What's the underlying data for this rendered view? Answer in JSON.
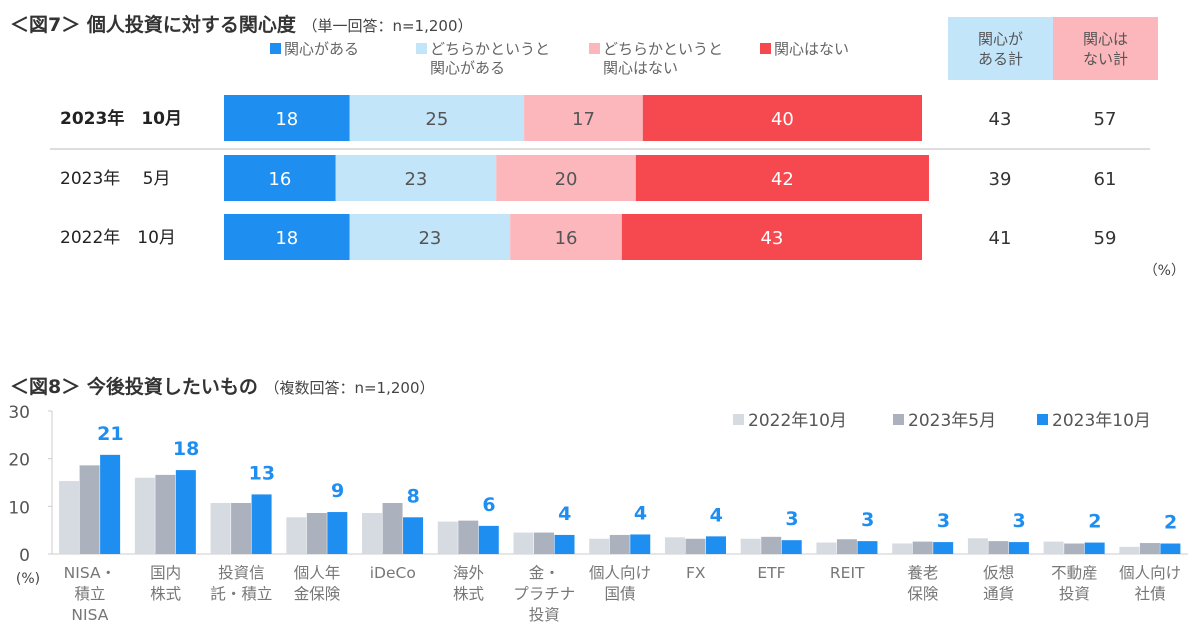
{
  "chart_data": [
    {
      "type": "bar",
      "orientation": "horizontal-stacked",
      "title": "＜図7＞ 個人投資に対する関心度",
      "subtitle": "（単一回答：n=1,200）",
      "categories": [
        "2023年　10月",
        "2023年　 5月",
        "2022年　10月"
      ],
      "series": [
        {
          "name": "関心がある",
          "color": "#1f8ef1",
          "values": [
            18,
            16,
            18
          ]
        },
        {
          "name": "どちらかというと関心がある",
          "label_lines": [
            "どちらかというと",
            "関心がある"
          ],
          "color": "#c3e5f9",
          "values": [
            25,
            23,
            23
          ]
        },
        {
          "name": "どちらかというと関心はない",
          "label_lines": [
            "どちらかというと",
            "関心はない"
          ],
          "color": "#fbb7bb",
          "values": [
            17,
            20,
            16
          ]
        },
        {
          "name": "関心はない",
          "color": "#f6484f",
          "values": [
            40,
            42,
            43
          ]
        }
      ],
      "totals": {
        "headers": [
          {
            "lines": [
              "関心が",
              "ある計"
            ],
            "color": "#c3e5f9"
          },
          {
            "lines": [
              "関心は",
              "ない計"
            ],
            "color": "#fbb7bb"
          }
        ],
        "values": [
          [
            43,
            57
          ],
          [
            39,
            61
          ],
          [
            41,
            59
          ]
        ]
      },
      "unit": "（%）",
      "legend": "top"
    },
    {
      "type": "bar",
      "title": "＜図8＞ 今後投資したいもの",
      "subtitle": "（複数回答：n=1,200）",
      "ylabel": "(%)",
      "ylim": [
        0,
        30
      ],
      "yticks": [
        0,
        10,
        20,
        30
      ],
      "categories": [
        [
          "NISA・",
          "積立",
          "NISA"
        ],
        [
          "国内",
          "株式"
        ],
        [
          "投資信",
          "託・積立"
        ],
        [
          "個人年",
          "金保険"
        ],
        [
          "iDeCo"
        ],
        [
          "海外",
          "株式"
        ],
        [
          "金・",
          "プラチナ",
          "投資"
        ],
        [
          "個人向け",
          "国債"
        ],
        [
          "FX"
        ],
        [
          "ETF"
        ],
        [
          "REIT"
        ],
        [
          "養老",
          "保険"
        ],
        [
          "仮想",
          "通貨"
        ],
        [
          "不動産",
          "投資"
        ],
        [
          "個人向け",
          "社債"
        ]
      ],
      "series": [
        {
          "name": "2022年10月",
          "color": "#d6dae1",
          "values": [
            15.3,
            16.0,
            10.7,
            7.7,
            8.6,
            6.8,
            4.5,
            3.2,
            3.5,
            3.2,
            2.4,
            2.2,
            3.3,
            2.6,
            1.5
          ]
        },
        {
          "name": "2023年5月",
          "color": "#abb2be",
          "values": [
            18.6,
            16.6,
            10.7,
            8.6,
            10.7,
            7.0,
            4.5,
            4.0,
            3.2,
            3.6,
            3.1,
            2.6,
            2.7,
            2.2,
            2.3
          ]
        },
        {
          "name": "2023年10月",
          "color": "#1f8ef1",
          "values": [
            20.8,
            17.6,
            12.5,
            8.8,
            7.7,
            5.9,
            4.0,
            4.1,
            3.7,
            2.9,
            2.7,
            2.5,
            2.5,
            2.4,
            2.2
          ]
        }
      ],
      "data_labels": [
        21,
        18,
        13,
        9,
        8,
        6,
        4,
        4,
        4,
        3,
        3,
        3,
        3,
        2,
        2
      ],
      "legend": "top-right",
      "grid": false
    }
  ]
}
